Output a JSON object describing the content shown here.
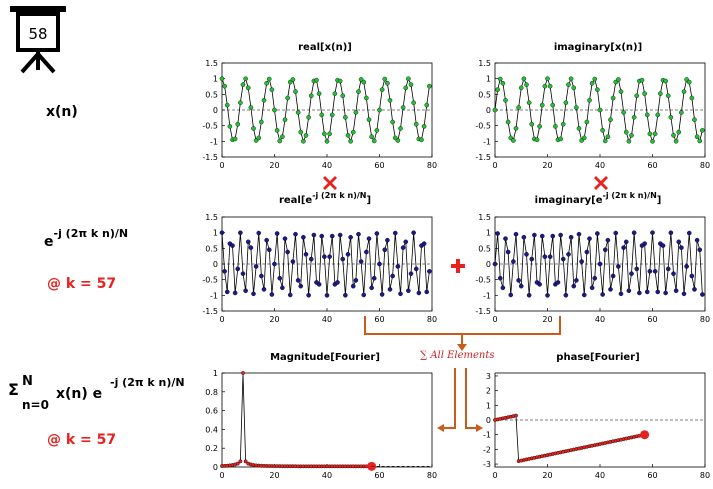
{
  "slide": {
    "number": "58"
  },
  "rows": {
    "xn": {
      "label": "x(n)"
    },
    "kernel": {
      "base": "e",
      "exponent": "-j (2π k n)/N",
      "k_label": "@ k = 57"
    },
    "sum": {
      "sigma": "Σ",
      "upper": "N",
      "lower": "n=0",
      "body": "x(n) e",
      "exponent": "-j (2π k n)/N",
      "k_label": "@ k = 57"
    }
  },
  "operators": {
    "times_icon": "red-x-icon",
    "plus_icon": "red-plus-icon",
    "sum_label": "∑ All Elements",
    "arrow_color": "#cc5a1a"
  },
  "colors": {
    "green": "#22c032",
    "navy": "#1a1a8c",
    "red": "#e8231f",
    "line": "#000000"
  },
  "chart_data": [
    {
      "id": "real_x",
      "type": "line",
      "title": "real[x(n)]",
      "marker_color": "#22c032",
      "x_ticks": [
        0,
        20,
        40,
        60,
        80
      ],
      "y_ticks": [
        -1.5,
        -1,
        -0.5,
        0,
        0.5,
        1,
        1.5
      ],
      "xlim": [
        0,
        80
      ],
      "ylim": [
        -1.5,
        1.5
      ],
      "formula": "cos(2*pi*9*n/80)",
      "n_points": 80
    },
    {
      "id": "imag_x",
      "type": "line",
      "title": "imaginary[x(n)]",
      "marker_color": "#22c032",
      "x_ticks": [
        0,
        20,
        40,
        60,
        80
      ],
      "y_ticks": [
        -1.5,
        -1,
        -0.5,
        0,
        0.5,
        1,
        1.5
      ],
      "xlim": [
        0,
        80
      ],
      "ylim": [
        -1.5,
        1.5
      ],
      "formula": "sin(2*pi*9*n/80)",
      "n_points": 80
    },
    {
      "id": "real_e",
      "type": "line",
      "title_main": "real[e",
      "title_sup": "-j (2π k n)/N",
      "title_end": "]",
      "marker_color": "#1a1a8c",
      "x_ticks": [
        0,
        20,
        40,
        60,
        80
      ],
      "y_ticks": [
        -1.5,
        -1,
        -0.5,
        0,
        0.5,
        1,
        1.5
      ],
      "xlim": [
        0,
        80
      ],
      "ylim": [
        -1.5,
        1.5
      ],
      "formula": "cos(2*pi*57*n/80)",
      "n_points": 80
    },
    {
      "id": "imag_e",
      "type": "line",
      "title_main": "imaginary[e",
      "title_sup": "-j (2π k n)/N",
      "title_end": "]",
      "marker_color": "#1a1a8c",
      "x_ticks": [
        0,
        20,
        40,
        60,
        80
      ],
      "y_ticks": [
        -1.5,
        -1,
        -0.5,
        0,
        0.5,
        1,
        1.5
      ],
      "xlim": [
        0,
        80
      ],
      "ylim": [
        -1.5,
        1.5
      ],
      "formula": "-sin(2*pi*57*n/80)",
      "n_points": 80
    },
    {
      "id": "mag",
      "type": "line",
      "title": "Magnitude[Fourier]",
      "marker_color": "#e8231f",
      "x_ticks": [
        0,
        20,
        40,
        60,
        80
      ],
      "y_ticks": [
        0,
        0.2,
        0.4,
        0.6,
        0.8,
        1
      ],
      "xlim": [
        0,
        80
      ],
      "ylim": [
        0,
        1
      ],
      "x": [
        0,
        1,
        2,
        3,
        4,
        5,
        6,
        7,
        8,
        9,
        10,
        11,
        12,
        13,
        14,
        15,
        16,
        17,
        18,
        19,
        20,
        21,
        22,
        23,
        24,
        25,
        26,
        27,
        28,
        29,
        30,
        31,
        32,
        33,
        34,
        35,
        36,
        37,
        38,
        39,
        40,
        41,
        42,
        43,
        44,
        45,
        46,
        47,
        48,
        49,
        50,
        51,
        52,
        53,
        54,
        55,
        56,
        57
      ],
      "y": [
        0.01,
        0.012,
        0.014,
        0.017,
        0.021,
        0.027,
        0.036,
        0.06,
        1.0,
        0.06,
        0.036,
        0.027,
        0.021,
        0.017,
        0.015,
        0.013,
        0.012,
        0.011,
        0.01,
        0.01,
        0.009,
        0.009,
        0.009,
        0.008,
        0.008,
        0.008,
        0.008,
        0.008,
        0.008,
        0.007,
        0.007,
        0.007,
        0.007,
        0.007,
        0.007,
        0.007,
        0.007,
        0.007,
        0.007,
        0.007,
        0.007,
        0.007,
        0.007,
        0.007,
        0.007,
        0.007,
        0.007,
        0.007,
        0.007,
        0.007,
        0.007,
        0.007,
        0.007,
        0.007,
        0.007,
        0.007,
        0.007,
        0.007
      ],
      "highlight_index": 57
    },
    {
      "id": "phase",
      "type": "line",
      "title": "phase[Fourier]",
      "marker_color": "#e8231f",
      "x_ticks": [
        0,
        20,
        40,
        60,
        80
      ],
      "y_ticks": [
        -3,
        -2,
        -1,
        0,
        1,
        2,
        3
      ],
      "xlim": [
        0,
        80
      ],
      "ylim": [
        -3.2,
        3.2
      ],
      "segments": [
        {
          "x_from": 0,
          "x_to": 8,
          "y_from": 0.0,
          "y_to": 0.3
        },
        {
          "x_from": 9,
          "x_to": 57,
          "y_from": -2.8,
          "y_to": -1.0
        }
      ],
      "highlight_index": 57
    }
  ]
}
